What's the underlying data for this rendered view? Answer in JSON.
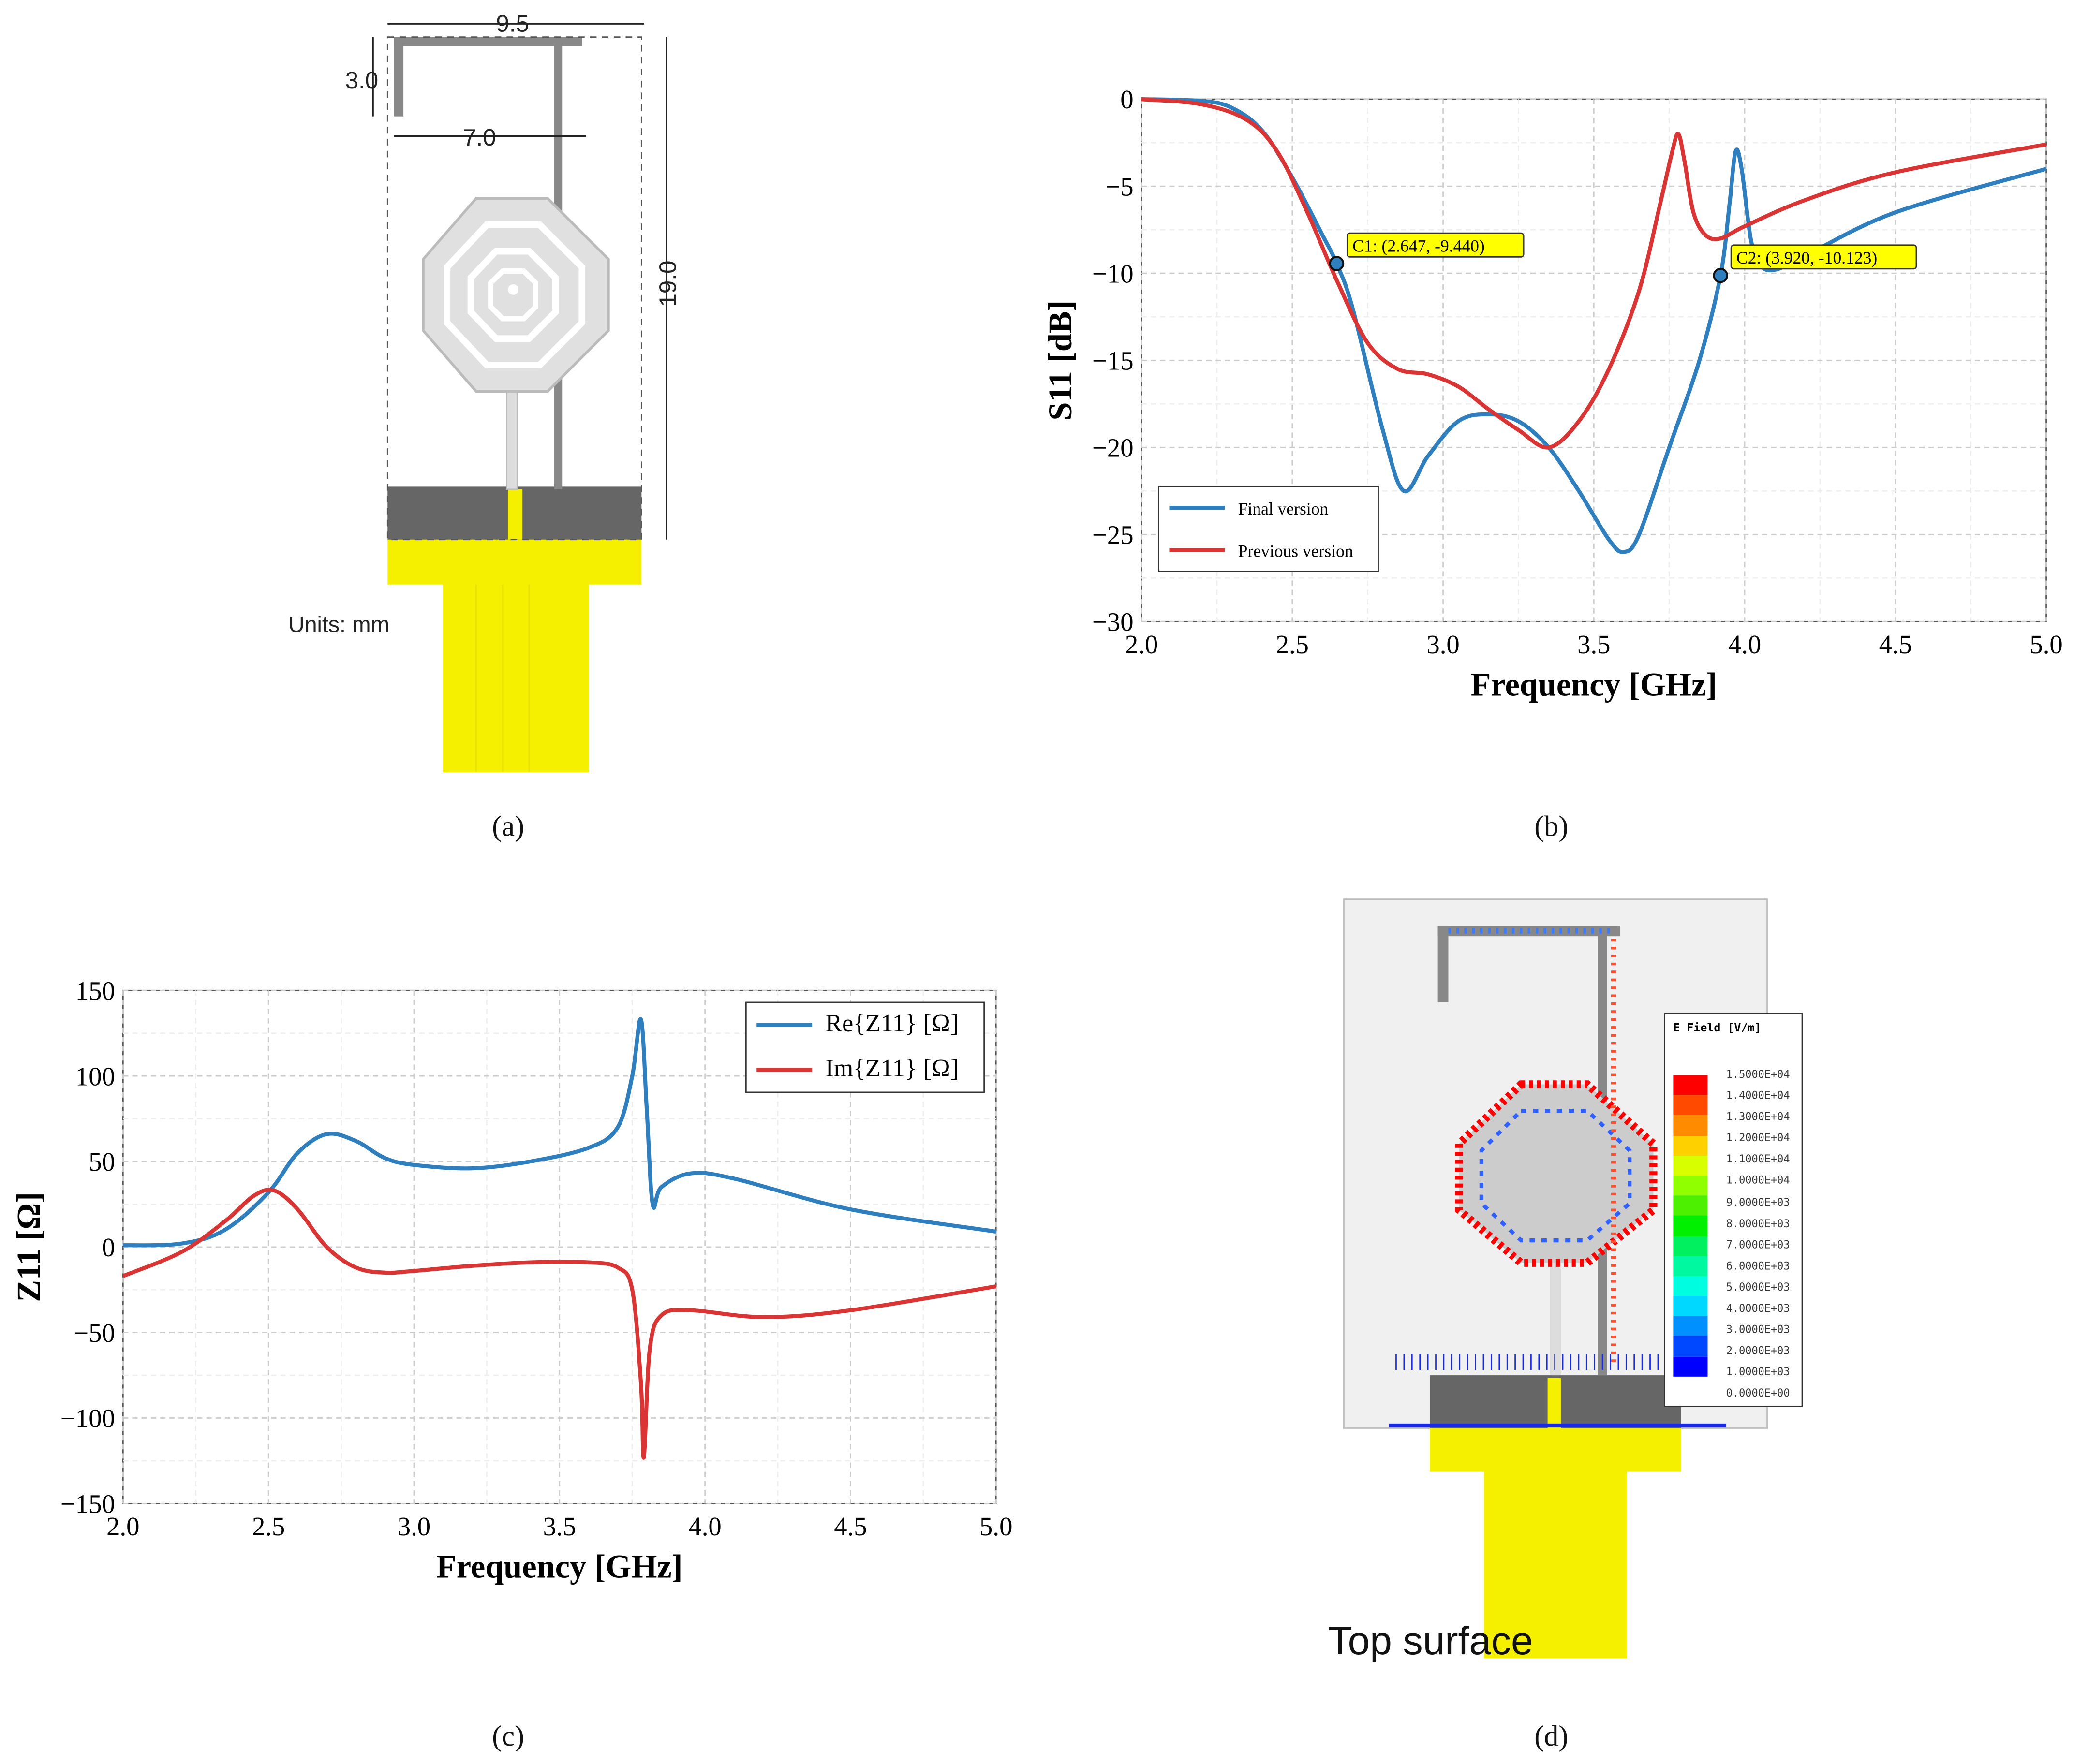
{
  "panel_a": {
    "dims": {
      "width_top": "9.5",
      "height_arm": "3.0",
      "width_arm": "7.0",
      "height_total": "19.0"
    },
    "units": "Units: mm",
    "caption": "(a)"
  },
  "panel_d": {
    "legend_title": "E Field [V/m]",
    "legend_values": [
      "1.5000E+04",
      "1.4000E+04",
      "1.3000E+04",
      "1.2000E+04",
      "1.1000E+04",
      "1.0000E+04",
      "9.0000E+03",
      "8.0000E+03",
      "7.0000E+03",
      "6.0000E+03",
      "5.0000E+03",
      "4.0000E+03",
      "3.0000E+03",
      "2.0000E+03",
      "1.0000E+03",
      "0.0000E+00"
    ],
    "legend_colors": [
      "#ff0000",
      "#ff4a00",
      "#ff8c00",
      "#ffd000",
      "#d8ff00",
      "#90ff00",
      "#4cf000",
      "#00f000",
      "#00f060",
      "#00f8a0",
      "#00fde0",
      "#00d8ff",
      "#0090ff",
      "#0048ff",
      "#0000ff"
    ],
    "label": "Top surface",
    "caption": "(d)"
  },
  "chart_data": [
    {
      "type": "line",
      "caption": "(b)",
      "xlabel": "Frequency [GHz]",
      "ylabel": "S11 [dB]",
      "xlim": [
        2.0,
        5.0
      ],
      "ylim": [
        -30,
        0
      ],
      "xticks": [
        "2.0",
        "2.5",
        "3.0",
        "3.5",
        "4.0",
        "4.5",
        "5.0"
      ],
      "yticks": [
        "0",
        "−5",
        "−10",
        "−15",
        "−20",
        "−25",
        "−30"
      ],
      "grid": true,
      "legend_position": "bottom-left",
      "series": [
        {
          "name": "Final version",
          "color": "#2f7fbf",
          "x": [
            2.0,
            2.2,
            2.3,
            2.4,
            2.5,
            2.6,
            2.647,
            2.7,
            2.8,
            2.87,
            2.95,
            3.05,
            3.15,
            3.25,
            3.35,
            3.45,
            3.55,
            3.6,
            3.65,
            3.75,
            3.85,
            3.92,
            3.95,
            3.97,
            3.99,
            4.02,
            4.05,
            4.1,
            4.2,
            4.5,
            5.0
          ],
          "y": [
            0,
            -0.1,
            -0.5,
            -1.8,
            -4.5,
            -7.8,
            -9.44,
            -12,
            -19,
            -22.5,
            -20.5,
            -18.5,
            -18.1,
            -18.5,
            -20,
            -22.5,
            -25.3,
            -26,
            -25,
            -20,
            -15,
            -10.12,
            -6,
            -3,
            -4,
            -8,
            -9.5,
            -9.8,
            -9,
            -6.5,
            -4
          ]
        },
        {
          "name": "Previous version",
          "color": "#d93535",
          "x": [
            2.0,
            2.2,
            2.35,
            2.45,
            2.55,
            2.65,
            2.75,
            2.85,
            2.95,
            3.05,
            3.15,
            3.25,
            3.35,
            3.45,
            3.55,
            3.65,
            3.72,
            3.76,
            3.78,
            3.8,
            3.83,
            3.87,
            3.92,
            4.0,
            4.2,
            4.5,
            5.0
          ],
          "y": [
            0,
            -0.3,
            -1.2,
            -3,
            -6.5,
            -10.5,
            -14,
            -15.5,
            -15.8,
            -16.5,
            -17.8,
            -19,
            -20,
            -18.5,
            -15.5,
            -11,
            -6,
            -3,
            -2,
            -3.5,
            -6.5,
            -7.8,
            -8,
            -7.3,
            -5.8,
            -4.2,
            -2.6
          ]
        }
      ],
      "annotations": [
        {
          "label": "C1: (2.647, -9.440)",
          "x": 2.647,
          "y": -9.44
        },
        {
          "label": "C2: (3.920, -10.123)",
          "x": 3.92,
          "y": -10.123
        }
      ]
    },
    {
      "type": "line",
      "caption": "(c)",
      "xlabel": "Frequency [GHz]",
      "ylabel": "Z11 [Ω]",
      "xlim": [
        2.0,
        5.0
      ],
      "ylim": [
        -150,
        150
      ],
      "xticks": [
        "2.0",
        "2.5",
        "3.0",
        "3.5",
        "4.0",
        "4.5",
        "5.0"
      ],
      "yticks": [
        "150",
        "100",
        "50",
        "0",
        "−50",
        "−100",
        "−150"
      ],
      "grid": true,
      "legend_position": "top-right",
      "series": [
        {
          "name": "Re{Z11} [Ω]",
          "color": "#2f7fbf",
          "x": [
            2.0,
            2.2,
            2.35,
            2.5,
            2.6,
            2.7,
            2.8,
            2.9,
            3.0,
            3.2,
            3.4,
            3.6,
            3.7,
            3.75,
            3.78,
            3.8,
            3.82,
            3.85,
            3.95,
            4.1,
            4.5,
            5.0
          ],
          "y": [
            1,
            2,
            10,
            32,
            55,
            66,
            62,
            52,
            48,
            46,
            50,
            58,
            70,
            100,
            133,
            80,
            25,
            35,
            43,
            40,
            22,
            9
          ]
        },
        {
          "name": "Im{Z11} [Ω]",
          "color": "#d93535",
          "x": [
            2.0,
            2.2,
            2.35,
            2.45,
            2.52,
            2.6,
            2.7,
            2.8,
            2.9,
            3.0,
            3.2,
            3.4,
            3.6,
            3.7,
            3.75,
            3.78,
            3.79,
            3.81,
            3.85,
            3.95,
            4.2,
            4.5,
            5.0
          ],
          "y": [
            -17,
            -3,
            15,
            30,
            33,
            22,
            0,
            -12,
            -15,
            -14,
            -11,
            -9,
            -9,
            -12,
            -25,
            -80,
            -123,
            -60,
            -40,
            -37,
            -41,
            -37,
            -23
          ]
        }
      ]
    }
  ]
}
